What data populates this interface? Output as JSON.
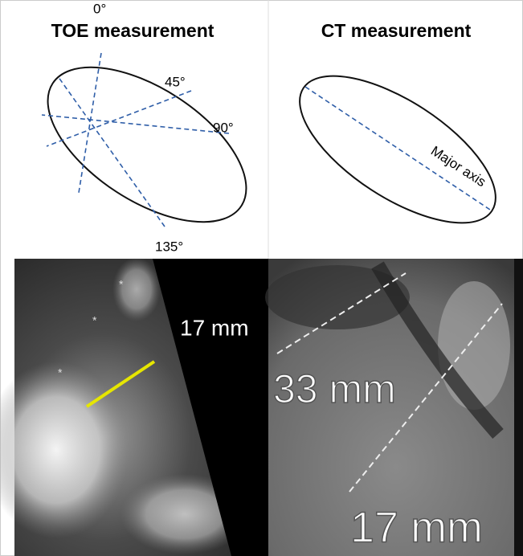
{
  "panels": {
    "toe": {
      "title": "TOE measurement",
      "angles": [
        "0°",
        "45°",
        "90°",
        "135°"
      ],
      "image_label": "17 mm"
    },
    "ct": {
      "title": "CT measurement",
      "axis_label": "Major axis",
      "image_labels": [
        "33 mm",
        "17 mm"
      ]
    }
  }
}
